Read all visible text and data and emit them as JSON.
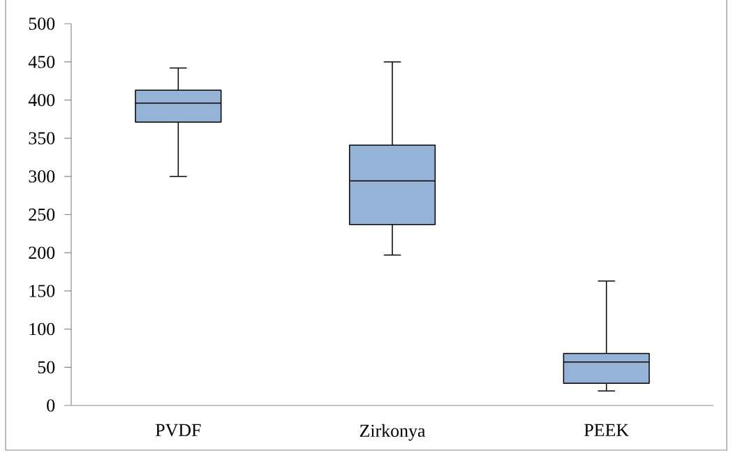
{
  "chart_data": {
    "type": "box",
    "categories": [
      "PVDF",
      "Zirkonya",
      "PEEK"
    ],
    "boxes": [
      {
        "low": 300,
        "q1": 371,
        "median": 396,
        "q3": 413,
        "high": 442
      },
      {
        "low": 197,
        "q1": 237,
        "median": 294,
        "q3": 341,
        "high": 450
      },
      {
        "low": 19,
        "q1": 29,
        "median": 57,
        "q3": 68,
        "high": 163
      }
    ],
    "color": "#95b3d7",
    "ylim": [
      0,
      500
    ],
    "yticks": [
      0,
      50,
      100,
      150,
      200,
      250,
      300,
      350,
      400,
      450,
      500
    ]
  }
}
